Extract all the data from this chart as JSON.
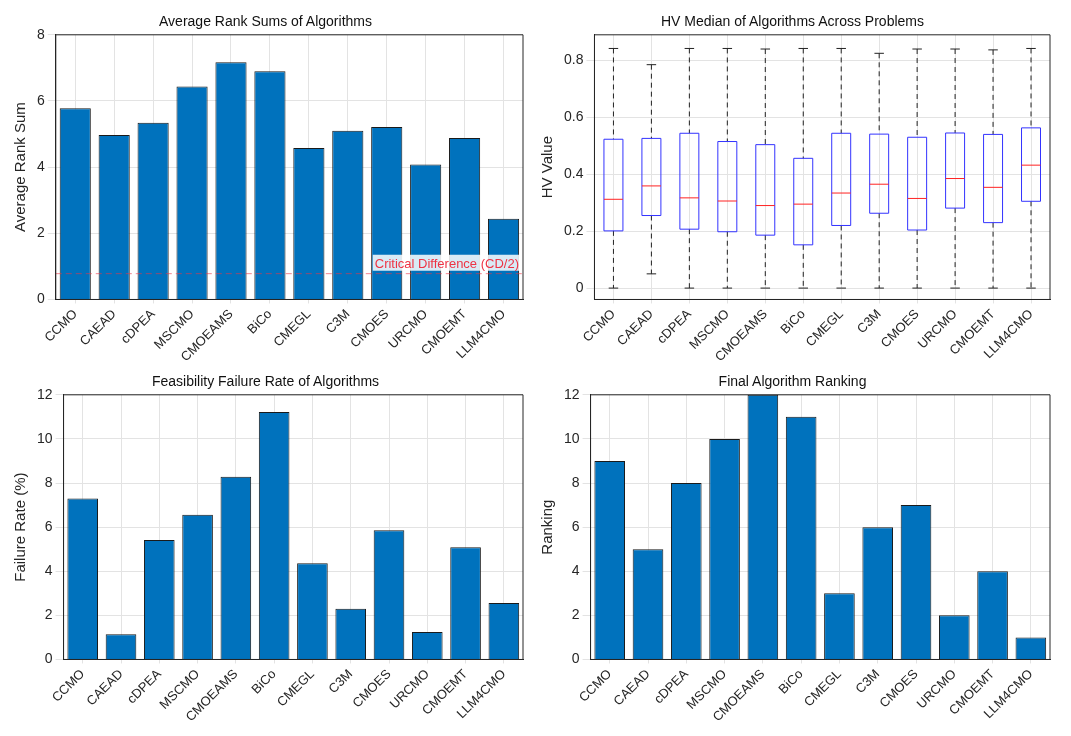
{
  "chart_data": [
    {
      "type": "bar",
      "title": "Average Rank Sums of Algorithms",
      "ylabel": "Average Rank Sum",
      "categories": [
        "CCMO",
        "CAEAD",
        "cDPEA",
        "MSCMO",
        "CMOEAMS",
        "BiCo",
        "CMEGL",
        "C3M",
        "CMOES",
        "URCMO",
        "CMOEMT",
        "LLM4CMO"
      ],
      "values": [
        5.78,
        4.97,
        5.34,
        6.44,
        7.17,
        6.9,
        4.58,
        5.1,
        5.21,
        4.08,
        4.88,
        2.44
      ],
      "color": "#0072bd",
      "ylim": [
        0,
        8
      ],
      "yticks": [
        0,
        2,
        4,
        6,
        8
      ],
      "grid": true,
      "ref_lines": [
        {
          "axis": "y",
          "value": 0.78,
          "label": "Critical Difference (CD/2)",
          "color": "#ee3344",
          "line_style": "dashed"
        }
      ]
    },
    {
      "type": "box",
      "title": "HV Median of Algorithms Across Problems",
      "ylabel": "HV Value",
      "categories": [
        "CCMO",
        "CAEAD",
        "cDPEA",
        "MSCMO",
        "CMOEAMS",
        "BiCo",
        "CMEGL",
        "C3M",
        "CMOES",
        "URCMO",
        "CMOEMT",
        "LLM4CMO"
      ],
      "ylim": [
        -0.04,
        0.89
      ],
      "yticks": [
        0,
        0.2,
        0.4,
        0.6,
        0.8
      ],
      "grid": true,
      "color": "#3333ff",
      "boxes": [
        {
          "low": 0,
          "q1": 0.201,
          "median": 0.312,
          "q3": 0.523,
          "high": 0.842
        },
        {
          "low": 0.05,
          "q1": 0.255,
          "median": 0.359,
          "q3": 0.526,
          "high": 0.785
        },
        {
          "low": 0,
          "q1": 0.207,
          "median": 0.317,
          "q3": 0.544,
          "high": 0.842
        },
        {
          "low": 0,
          "q1": 0.198,
          "median": 0.306,
          "q3": 0.515,
          "high": 0.842
        },
        {
          "low": 0,
          "q1": 0.186,
          "median": 0.29,
          "q3": 0.504,
          "high": 0.84
        },
        {
          "low": 0,
          "q1": 0.152,
          "median": 0.295,
          "q3": 0.456,
          "high": 0.842
        },
        {
          "low": 0,
          "q1": 0.22,
          "median": 0.334,
          "q3": 0.544,
          "high": 0.842
        },
        {
          "low": 0,
          "q1": 0.263,
          "median": 0.365,
          "q3": 0.541,
          "high": 0.825
        },
        {
          "low": 0,
          "q1": 0.204,
          "median": 0.315,
          "q3": 0.53,
          "high": 0.84
        },
        {
          "low": 0,
          "q1": 0.281,
          "median": 0.385,
          "q3": 0.545,
          "high": 0.84
        },
        {
          "low": 0,
          "q1": 0.23,
          "median": 0.354,
          "q3": 0.54,
          "high": 0.837
        },
        {
          "low": 0,
          "q1": 0.305,
          "median": 0.432,
          "q3": 0.563,
          "high": 0.842
        }
      ]
    },
    {
      "type": "bar",
      "title": "Feasibility Failure Rate of Algorithms",
      "ylabel": "Failure Rate (%)",
      "categories": [
        "CCMO",
        "CAEAD",
        "cDPEA",
        "MSCMO",
        "CMOEAMS",
        "BiCo",
        "CMEGL",
        "C3M",
        "CMOES",
        "URCMO",
        "CMOEMT",
        "LLM4CMO"
      ],
      "values": [
        7.3,
        1.14,
        5.42,
        6.56,
        8.28,
        11.22,
        4.36,
        2.3,
        5.86,
        1.25,
        5.09,
        2.56
      ],
      "color": "#0072bd",
      "ylim": [
        0,
        12
      ],
      "yticks": [
        0,
        2,
        4,
        6,
        8,
        10,
        12
      ],
      "grid": true
    },
    {
      "type": "bar",
      "title": "Final Algorithm Ranking",
      "ylabel": "Ranking",
      "categories": [
        "CCMO",
        "CAEAD",
        "cDPEA",
        "MSCMO",
        "CMOEAMS",
        "BiCo",
        "CMEGL",
        "C3M",
        "CMOES",
        "URCMO",
        "CMOEMT",
        "LLM4CMO"
      ],
      "values": [
        9,
        5,
        8,
        10,
        12,
        11,
        3,
        6,
        7,
        2,
        4,
        1
      ],
      "color": "#0072bd",
      "ylim": [
        0,
        12
      ],
      "yticks": [
        0,
        2,
        4,
        6,
        8,
        10,
        12
      ],
      "grid": true
    }
  ]
}
